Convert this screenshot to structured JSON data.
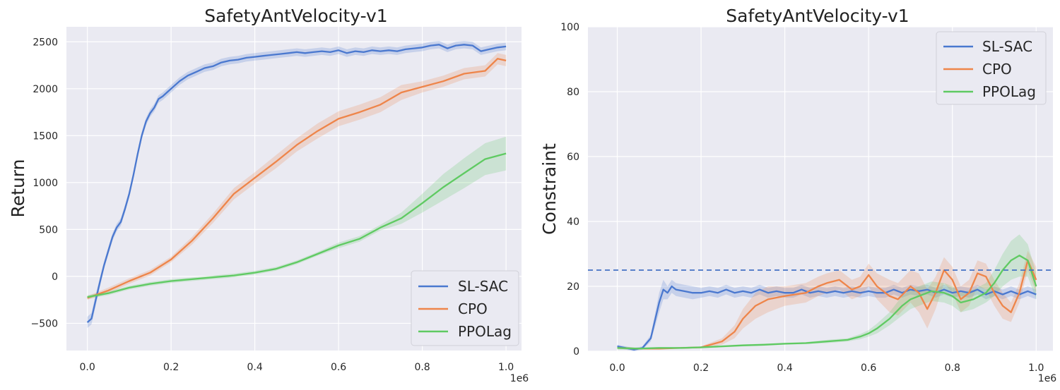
{
  "colors": {
    "SL-SAC": "#4a78cf",
    "CPO": "#ee854a",
    "PPOLag": "#5fca62",
    "background": "#eaeaf2",
    "grid": "#ffffff",
    "threshold": "#4472c4"
  },
  "chart_data": [
    {
      "type": "line",
      "title": "SafetyAntVelocity-v1",
      "xlabel": "",
      "ylabel": "Return",
      "x_offset_label": "1e6",
      "xlim": [
        -0.05,
        1.037
      ],
      "ylim": [
        -790,
        2660
      ],
      "xticks": [
        0.0,
        0.2,
        0.4,
        0.6,
        0.8,
        1.0
      ],
      "xtick_labels": [
        "0.0",
        "0.2",
        "0.4",
        "0.6",
        "0.8",
        "1.0"
      ],
      "yticks": [
        -500,
        0,
        500,
        1000,
        1500,
        2000,
        2500
      ],
      "ytick_labels": [
        "−500",
        "0",
        "500",
        "1000",
        "1500",
        "2000",
        "2500"
      ],
      "legend_position": "lower-right",
      "legend": [
        "SL-SAC",
        "CPO",
        "PPOLag"
      ],
      "series": [
        {
          "name": "SL-SAC",
          "x": [
            0.0,
            0.01,
            0.02,
            0.03,
            0.04,
            0.05,
            0.06,
            0.07,
            0.08,
            0.09,
            0.1,
            0.11,
            0.12,
            0.13,
            0.14,
            0.15,
            0.16,
            0.17,
            0.18,
            0.19,
            0.2,
            0.22,
            0.24,
            0.26,
            0.28,
            0.3,
            0.32,
            0.34,
            0.36,
            0.38,
            0.4,
            0.42,
            0.44,
            0.46,
            0.48,
            0.5,
            0.52,
            0.54,
            0.56,
            0.58,
            0.6,
            0.62,
            0.64,
            0.66,
            0.68,
            0.7,
            0.72,
            0.74,
            0.76,
            0.78,
            0.8,
            0.82,
            0.84,
            0.86,
            0.88,
            0.9,
            0.92,
            0.94,
            0.96,
            0.98,
            1.0
          ],
          "values": [
            -490,
            -450,
            -250,
            -60,
            120,
            270,
            420,
            520,
            580,
            720,
            880,
            1080,
            1300,
            1500,
            1650,
            1740,
            1800,
            1890,
            1920,
            1960,
            2000,
            2080,
            2140,
            2180,
            2220,
            2240,
            2280,
            2300,
            2310,
            2330,
            2340,
            2350,
            2360,
            2370,
            2380,
            2390,
            2380,
            2390,
            2400,
            2390,
            2410,
            2380,
            2400,
            2390,
            2410,
            2400,
            2410,
            2400,
            2420,
            2430,
            2440,
            2460,
            2470,
            2430,
            2460,
            2470,
            2460,
            2400,
            2420,
            2440,
            2450
          ],
          "band": [
            60,
            60,
            60,
            50,
            40,
            40,
            40,
            40,
            40,
            40,
            40,
            40,
            40,
            40,
            40,
            40,
            40,
            40,
            40,
            40,
            40,
            40,
            40,
            40,
            40,
            40,
            40,
            40,
            40,
            40,
            40,
            40,
            40,
            40,
            40,
            40,
            40,
            40,
            40,
            40,
            40,
            40,
            40,
            40,
            40,
            40,
            40,
            40,
            40,
            40,
            40,
            40,
            40,
            40,
            40,
            40,
            40,
            40,
            40,
            40,
            40
          ]
        },
        {
          "name": "CPO",
          "x": [
            0.0,
            0.05,
            0.1,
            0.15,
            0.2,
            0.25,
            0.3,
            0.35,
            0.4,
            0.45,
            0.5,
            0.55,
            0.6,
            0.65,
            0.7,
            0.75,
            0.8,
            0.85,
            0.9,
            0.95,
            0.98,
            1.0
          ],
          "values": [
            -230,
            -150,
            -50,
            40,
            180,
            380,
            620,
            880,
            1050,
            1220,
            1400,
            1550,
            1680,
            1750,
            1830,
            1960,
            2020,
            2080,
            2160,
            2190,
            2320,
            2300
          ],
          "band": [
            20,
            30,
            30,
            30,
            30,
            40,
            50,
            60,
            60,
            70,
            70,
            80,
            80,
            80,
            80,
            80,
            60,
            60,
            60,
            60,
            60,
            60
          ]
        },
        {
          "name": "PPOLag",
          "x": [
            0.0,
            0.05,
            0.1,
            0.15,
            0.2,
            0.25,
            0.3,
            0.35,
            0.4,
            0.45,
            0.5,
            0.55,
            0.6,
            0.65,
            0.7,
            0.75,
            0.8,
            0.85,
            0.9,
            0.95,
            1.0
          ],
          "values": [
            -220,
            -180,
            -120,
            -80,
            -50,
            -30,
            -10,
            10,
            40,
            80,
            150,
            240,
            330,
            400,
            520,
            620,
            780,
            950,
            1100,
            1250,
            1310
          ],
          "band": [
            20,
            20,
            20,
            20,
            20,
            20,
            20,
            20,
            20,
            20,
            20,
            20,
            30,
            30,
            30,
            60,
            100,
            140,
            160,
            170,
            180
          ]
        }
      ]
    },
    {
      "type": "line",
      "title": "SafetyAntVelocity-v1",
      "xlabel": "",
      "ylabel": "Constraint",
      "x_offset_label": "1e6",
      "xlim": [
        -0.07,
        1.04
      ],
      "ylim": [
        0,
        100
      ],
      "xticks": [
        0.0,
        0.2,
        0.4,
        0.6,
        0.8,
        1.0
      ],
      "xtick_labels": [
        "0.0",
        "0.2",
        "0.4",
        "0.6",
        "0.8",
        "1.0"
      ],
      "yticks": [
        0,
        20,
        40,
        60,
        80,
        100
      ],
      "ytick_labels": [
        "0",
        "20",
        "40",
        "60",
        "80",
        "100"
      ],
      "threshold": 25,
      "legend_position": "top-right",
      "legend": [
        "SL-SAC",
        "CPO",
        "PPOLag"
      ],
      "series": [
        {
          "name": "SL-SAC",
          "x": [
            0.0,
            0.02,
            0.04,
            0.06,
            0.08,
            0.1,
            0.11,
            0.12,
            0.13,
            0.14,
            0.16,
            0.18,
            0.2,
            0.22,
            0.24,
            0.26,
            0.28,
            0.3,
            0.32,
            0.34,
            0.36,
            0.38,
            0.4,
            0.42,
            0.44,
            0.46,
            0.48,
            0.5,
            0.52,
            0.54,
            0.56,
            0.58,
            0.6,
            0.62,
            0.64,
            0.66,
            0.68,
            0.7,
            0.72,
            0.74,
            0.76,
            0.78,
            0.8,
            0.82,
            0.84,
            0.86,
            0.88,
            0.9,
            0.92,
            0.94,
            0.96,
            0.98,
            1.0
          ],
          "values": [
            1.5,
            1.0,
            0.5,
            1.0,
            4.0,
            15.0,
            19.0,
            18.0,
            20.0,
            19.0,
            18.5,
            18.0,
            18.0,
            18.5,
            18.0,
            19.0,
            18.0,
            18.5,
            18.0,
            19.0,
            18.0,
            18.5,
            18.0,
            18.0,
            19.0,
            18.0,
            18.5,
            18.0,
            18.5,
            18.0,
            18.5,
            18.0,
            18.5,
            18.0,
            18.0,
            19.0,
            18.0,
            19.0,
            18.5,
            19.0,
            18.0,
            19.0,
            18.0,
            18.5,
            18.0,
            19.0,
            17.5,
            18.5,
            17.5,
            18.5,
            17.5,
            18.5,
            17.5
          ],
          "band": [
            0.5,
            0.5,
            0.5,
            0.5,
            1.0,
            3.0,
            3.0,
            2.0,
            2.0,
            2.0,
            2.0,
            2.0,
            1.5,
            1.5,
            1.5,
            1.5,
            1.5,
            1.5,
            1.5,
            1.5,
            1.5,
            1.5,
            1.5,
            1.5,
            1.5,
            1.5,
            1.5,
            1.5,
            1.5,
            1.5,
            1.5,
            1.5,
            1.5,
            1.5,
            1.5,
            1.5,
            1.5,
            1.5,
            1.5,
            1.5,
            1.5,
            1.5,
            1.5,
            1.5,
            1.5,
            1.5,
            1.5,
            1.5,
            1.5,
            1.5,
            1.5,
            1.5,
            1.5
          ]
        },
        {
          "name": "CPO",
          "x": [
            0.0,
            0.05,
            0.1,
            0.15,
            0.2,
            0.25,
            0.28,
            0.3,
            0.33,
            0.36,
            0.4,
            0.45,
            0.48,
            0.5,
            0.53,
            0.56,
            0.58,
            0.6,
            0.62,
            0.65,
            0.67,
            0.7,
            0.72,
            0.74,
            0.76,
            0.78,
            0.8,
            0.82,
            0.84,
            0.86,
            0.88,
            0.9,
            0.92,
            0.94,
            0.96,
            0.98,
            1.0
          ],
          "values": [
            1.0,
            0.8,
            0.8,
            1.0,
            1.2,
            3.0,
            6.0,
            10.0,
            14.0,
            16.0,
            17.0,
            18.0,
            20.0,
            21.0,
            22.0,
            19.0,
            20.0,
            23.5,
            20.0,
            17.0,
            16.0,
            20.0,
            18.0,
            13.0,
            18.0,
            25.0,
            22.0,
            16.0,
            18.0,
            24.0,
            23.0,
            18.0,
            14.0,
            12.0,
            18.0,
            28.0,
            22.0
          ],
          "band": [
            0.2,
            0.2,
            0.2,
            0.2,
            0.3,
            1.0,
            2.0,
            3.0,
            4.0,
            4.0,
            3.0,
            3.0,
            3.0,
            3.0,
            3.0,
            3.0,
            3.0,
            3.5,
            4.0,
            5.0,
            5.0,
            5.0,
            6.0,
            6.0,
            5.0,
            4.0,
            4.0,
            4.0,
            4.0,
            4.0,
            4.0,
            4.0,
            4.0,
            3.0,
            3.0,
            3.0,
            4.0
          ]
        },
        {
          "name": "PPOLag",
          "x": [
            0.0,
            0.05,
            0.1,
            0.15,
            0.2,
            0.25,
            0.3,
            0.35,
            0.4,
            0.45,
            0.5,
            0.55,
            0.58,
            0.6,
            0.62,
            0.65,
            0.68,
            0.7,
            0.72,
            0.75,
            0.78,
            0.8,
            0.82,
            0.85,
            0.88,
            0.9,
            0.92,
            0.94,
            0.96,
            0.98,
            1.0
          ],
          "values": [
            1.0,
            0.8,
            1.0,
            1.0,
            1.2,
            1.5,
            1.8,
            2.0,
            2.3,
            2.5,
            3.0,
            3.5,
            4.5,
            5.5,
            7.0,
            10.0,
            14.0,
            16.0,
            17.0,
            18.5,
            18.0,
            17.0,
            15.0,
            16.0,
            18.0,
            21.0,
            25.0,
            28.0,
            29.5,
            28.0,
            20.0
          ],
          "band": [
            0.5,
            0.3,
            0.3,
            0.3,
            0.3,
            0.3,
            0.3,
            0.3,
            0.3,
            0.3,
            0.5,
            0.5,
            0.8,
            1.0,
            1.5,
            2.0,
            3.0,
            3.0,
            3.0,
            3.0,
            3.0,
            3.0,
            3.0,
            3.0,
            3.0,
            4.0,
            5.0,
            6.0,
            6.5,
            5.0,
            4.0
          ]
        }
      ]
    }
  ]
}
